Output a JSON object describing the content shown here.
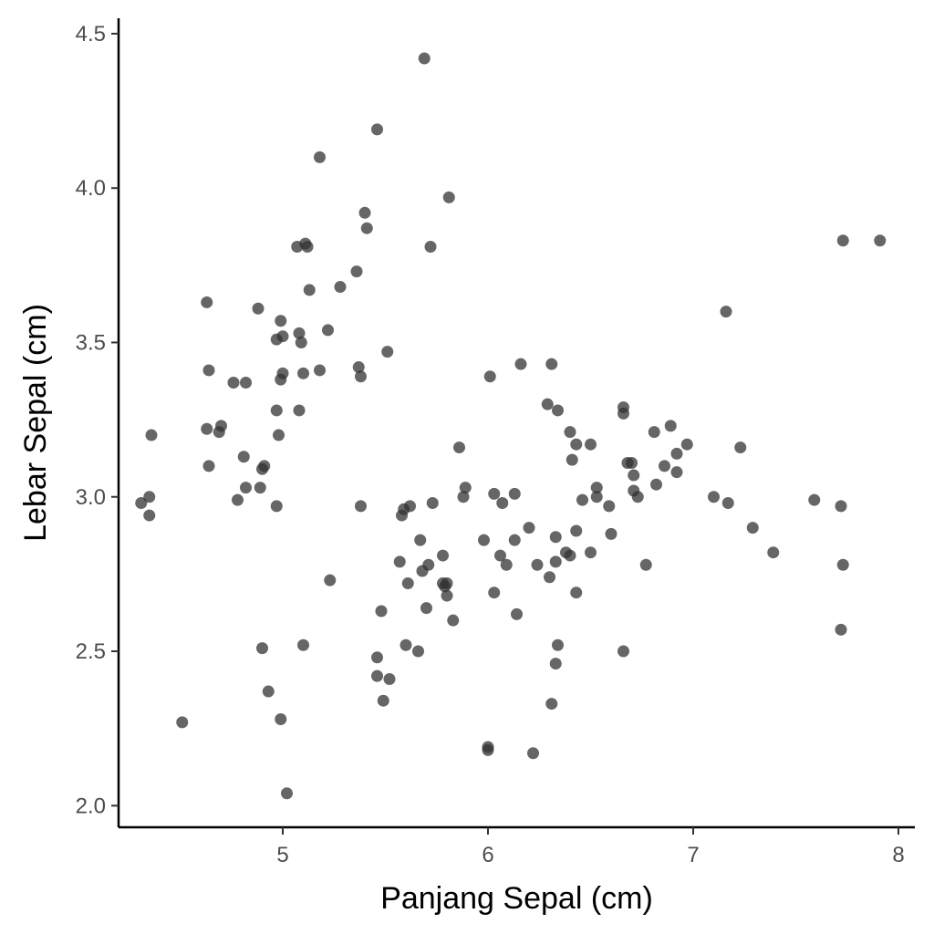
{
  "chart_data": {
    "type": "scatter",
    "title": "",
    "xlabel": "Panjang Sepal (cm)",
    "ylabel": "Lebar Sepal (cm)",
    "xlim": [
      4.2,
      8.08
    ],
    "ylim": [
      1.93,
      4.55
    ],
    "x_ticks": [
      5,
      6,
      7,
      8
    ],
    "y_ticks": [
      2.0,
      2.5,
      3.0,
      3.5,
      4.0,
      4.5
    ],
    "x_tick_labels": [
      "5",
      "6",
      "7",
      "8"
    ],
    "y_tick_labels": [
      "2.0",
      "2.5",
      "3.0",
      "3.5",
      "4.0",
      "4.5"
    ],
    "grid": false,
    "point_color": "#333333",
    "point_opacity": 0.75,
    "points": [
      {
        "x": 5.69,
        "y": 4.42
      },
      {
        "x": 5.46,
        "y": 4.19
      },
      {
        "x": 5.18,
        "y": 4.1
      },
      {
        "x": 5.81,
        "y": 3.97
      },
      {
        "x": 5.4,
        "y": 3.92
      },
      {
        "x": 5.41,
        "y": 3.87
      },
      {
        "x": 5.07,
        "y": 3.81
      },
      {
        "x": 5.11,
        "y": 3.82
      },
      {
        "x": 5.12,
        "y": 3.81
      },
      {
        "x": 5.72,
        "y": 3.81
      },
      {
        "x": 5.36,
        "y": 3.73
      },
      {
        "x": 5.13,
        "y": 3.67
      },
      {
        "x": 5.28,
        "y": 3.68
      },
      {
        "x": 4.63,
        "y": 3.63
      },
      {
        "x": 4.88,
        "y": 3.61
      },
      {
        "x": 4.99,
        "y": 3.57
      },
      {
        "x": 5.22,
        "y": 3.54
      },
      {
        "x": 5.08,
        "y": 3.53
      },
      {
        "x": 4.97,
        "y": 3.51
      },
      {
        "x": 5.0,
        "y": 3.52
      },
      {
        "x": 5.09,
        "y": 3.5
      },
      {
        "x": 5.51,
        "y": 3.47
      },
      {
        "x": 5.37,
        "y": 3.42
      },
      {
        "x": 4.64,
        "y": 3.41
      },
      {
        "x": 5.0,
        "y": 3.4
      },
      {
        "x": 5.1,
        "y": 3.4
      },
      {
        "x": 5.18,
        "y": 3.41
      },
      {
        "x": 4.99,
        "y": 3.38
      },
      {
        "x": 5.38,
        "y": 3.39
      },
      {
        "x": 4.76,
        "y": 3.37
      },
      {
        "x": 4.82,
        "y": 3.37
      },
      {
        "x": 4.97,
        "y": 3.28
      },
      {
        "x": 5.08,
        "y": 3.28
      },
      {
        "x": 4.63,
        "y": 3.22
      },
      {
        "x": 4.7,
        "y": 3.23
      },
      {
        "x": 4.69,
        "y": 3.21
      },
      {
        "x": 4.98,
        "y": 3.2
      },
      {
        "x": 4.36,
        "y": 3.2
      },
      {
        "x": 4.81,
        "y": 3.13
      },
      {
        "x": 4.64,
        "y": 3.1
      },
      {
        "x": 4.91,
        "y": 3.1
      },
      {
        "x": 4.9,
        "y": 3.09
      },
      {
        "x": 4.82,
        "y": 3.03
      },
      {
        "x": 4.89,
        "y": 3.03
      },
      {
        "x": 4.78,
        "y": 2.99
      },
      {
        "x": 4.31,
        "y": 2.98
      },
      {
        "x": 4.35,
        "y": 3.0
      },
      {
        "x": 4.35,
        "y": 2.94
      },
      {
        "x": 4.97,
        "y": 2.97
      },
      {
        "x": 5.38,
        "y": 2.97
      },
      {
        "x": 4.51,
        "y": 2.27
      },
      {
        "x": 4.9,
        "y": 2.51
      },
      {
        "x": 4.93,
        "y": 2.37
      },
      {
        "x": 4.99,
        "y": 2.28
      },
      {
        "x": 5.02,
        "y": 2.04
      },
      {
        "x": 5.1,
        "y": 2.52
      },
      {
        "x": 5.23,
        "y": 2.73
      },
      {
        "x": 5.48,
        "y": 2.63
      },
      {
        "x": 5.46,
        "y": 2.48
      },
      {
        "x": 5.46,
        "y": 2.42
      },
      {
        "x": 5.52,
        "y": 2.41
      },
      {
        "x": 5.49,
        "y": 2.34
      },
      {
        "x": 5.57,
        "y": 2.79
      },
      {
        "x": 5.58,
        "y": 2.94
      },
      {
        "x": 5.59,
        "y": 2.96
      },
      {
        "x": 5.62,
        "y": 2.97
      },
      {
        "x": 5.61,
        "y": 2.72
      },
      {
        "x": 5.6,
        "y": 2.52
      },
      {
        "x": 5.66,
        "y": 2.5
      },
      {
        "x": 5.67,
        "y": 2.86
      },
      {
        "x": 5.68,
        "y": 2.76
      },
      {
        "x": 5.71,
        "y": 2.78
      },
      {
        "x": 5.7,
        "y": 2.64
      },
      {
        "x": 5.73,
        "y": 2.98
      },
      {
        "x": 5.78,
        "y": 2.81
      },
      {
        "x": 5.78,
        "y": 2.72
      },
      {
        "x": 5.79,
        "y": 2.71
      },
      {
        "x": 5.8,
        "y": 2.68
      },
      {
        "x": 5.8,
        "y": 2.72
      },
      {
        "x": 5.83,
        "y": 2.6
      },
      {
        "x": 5.86,
        "y": 3.16
      },
      {
        "x": 5.89,
        "y": 3.03
      },
      {
        "x": 5.88,
        "y": 3.0
      },
      {
        "x": 5.98,
        "y": 2.86
      },
      {
        "x": 6.0,
        "y": 2.19
      },
      {
        "x": 6.0,
        "y": 2.18
      },
      {
        "x": 6.01,
        "y": 3.39
      },
      {
        "x": 6.03,
        "y": 3.01
      },
      {
        "x": 6.03,
        "y": 2.69
      },
      {
        "x": 6.06,
        "y": 2.81
      },
      {
        "x": 6.07,
        "y": 2.98
      },
      {
        "x": 6.09,
        "y": 2.78
      },
      {
        "x": 6.13,
        "y": 3.01
      },
      {
        "x": 6.13,
        "y": 2.86
      },
      {
        "x": 6.14,
        "y": 2.62
      },
      {
        "x": 6.16,
        "y": 3.43
      },
      {
        "x": 6.2,
        "y": 2.9
      },
      {
        "x": 6.22,
        "y": 2.17
      },
      {
        "x": 6.24,
        "y": 2.78
      },
      {
        "x": 6.29,
        "y": 3.3
      },
      {
        "x": 6.3,
        "y": 2.74
      },
      {
        "x": 6.31,
        "y": 3.43
      },
      {
        "x": 6.31,
        "y": 2.33
      },
      {
        "x": 6.33,
        "y": 2.87
      },
      {
        "x": 6.33,
        "y": 2.79
      },
      {
        "x": 6.34,
        "y": 3.28
      },
      {
        "x": 6.34,
        "y": 2.52
      },
      {
        "x": 6.33,
        "y": 2.46
      },
      {
        "x": 6.38,
        "y": 2.82
      },
      {
        "x": 6.4,
        "y": 2.81
      },
      {
        "x": 6.4,
        "y": 3.21
      },
      {
        "x": 6.41,
        "y": 3.12
      },
      {
        "x": 6.43,
        "y": 3.17
      },
      {
        "x": 6.43,
        "y": 2.89
      },
      {
        "x": 6.43,
        "y": 2.69
      },
      {
        "x": 6.46,
        "y": 2.99
      },
      {
        "x": 6.5,
        "y": 3.17
      },
      {
        "x": 6.5,
        "y": 2.82
      },
      {
        "x": 6.53,
        "y": 3.03
      },
      {
        "x": 6.53,
        "y": 3.0
      },
      {
        "x": 6.59,
        "y": 2.97
      },
      {
        "x": 6.6,
        "y": 2.88
      },
      {
        "x": 6.66,
        "y": 3.29
      },
      {
        "x": 6.66,
        "y": 3.27
      },
      {
        "x": 6.66,
        "y": 2.5
      },
      {
        "x": 6.68,
        "y": 3.11
      },
      {
        "x": 6.7,
        "y": 3.11
      },
      {
        "x": 6.71,
        "y": 3.07
      },
      {
        "x": 6.71,
        "y": 3.02
      },
      {
        "x": 6.73,
        "y": 3.0
      },
      {
        "x": 6.77,
        "y": 2.78
      },
      {
        "x": 6.81,
        "y": 3.21
      },
      {
        "x": 6.82,
        "y": 3.04
      },
      {
        "x": 6.86,
        "y": 3.1
      },
      {
        "x": 6.89,
        "y": 3.23
      },
      {
        "x": 6.92,
        "y": 3.14
      },
      {
        "x": 6.92,
        "y": 3.08
      },
      {
        "x": 6.97,
        "y": 3.17
      },
      {
        "x": 7.1,
        "y": 3.0
      },
      {
        "x": 7.16,
        "y": 3.6
      },
      {
        "x": 7.17,
        "y": 2.98
      },
      {
        "x": 7.23,
        "y": 3.16
      },
      {
        "x": 7.29,
        "y": 2.9
      },
      {
        "x": 7.39,
        "y": 2.82
      },
      {
        "x": 7.59,
        "y": 2.99
      },
      {
        "x": 7.72,
        "y": 2.97
      },
      {
        "x": 7.73,
        "y": 2.78
      },
      {
        "x": 7.72,
        "y": 2.57
      },
      {
        "x": 7.73,
        "y": 3.83
      },
      {
        "x": 7.91,
        "y": 3.83
      }
    ]
  }
}
